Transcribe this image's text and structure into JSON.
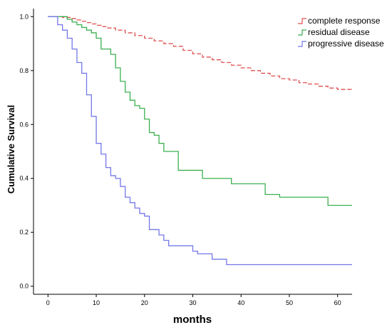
{
  "chart_data": {
    "type": "line",
    "title": "",
    "xlabel": "months",
    "ylabel": "Cumulative Survival",
    "xlim": [
      -3,
      63
    ],
    "ylim": [
      -0.03,
      1.03
    ],
    "x_ticks": [
      0,
      10,
      20,
      30,
      40,
      50,
      60
    ],
    "y_ticks": [
      0.0,
      0.2,
      0.4,
      0.6,
      0.8,
      1.0
    ],
    "x_tick_labels": [
      "0",
      "10",
      "20",
      "30",
      "40",
      "50",
      "60"
    ],
    "y_tick_labels": [
      "0.0",
      "0.2",
      "0.4",
      "0.6",
      "0.8",
      "1.0"
    ],
    "step": true,
    "grid": false,
    "legend_position": "top-right",
    "series": [
      {
        "name": "complete response",
        "color": "#e05050",
        "x": [
          0,
          3,
          5,
          6,
          7,
          8,
          9,
          10,
          11,
          12,
          14,
          16,
          18,
          20,
          22,
          24,
          26,
          28,
          30,
          32,
          34,
          36,
          38,
          40,
          42,
          44,
          46,
          48,
          50,
          52,
          54,
          56,
          58,
          60,
          63
        ],
        "y": [
          1.0,
          0.997,
          0.993,
          0.988,
          0.983,
          0.978,
          0.973,
          0.968,
          0.963,
          0.958,
          0.95,
          0.94,
          0.93,
          0.92,
          0.91,
          0.9,
          0.89,
          0.875,
          0.862,
          0.85,
          0.84,
          0.83,
          0.82,
          0.81,
          0.8,
          0.79,
          0.78,
          0.77,
          0.765,
          0.755,
          0.75,
          0.742,
          0.735,
          0.73,
          0.73
        ]
      },
      {
        "name": "residual disease",
        "color": "#3cb050",
        "x": [
          0,
          4,
          5,
          6,
          7,
          8,
          9,
          10,
          11,
          13,
          14,
          15,
          16,
          17,
          18,
          19,
          20,
          21,
          22,
          23,
          24,
          27,
          32,
          38,
          45,
          48,
          58,
          63
        ],
        "y": [
          1.0,
          0.99,
          0.98,
          0.97,
          0.96,
          0.95,
          0.94,
          0.92,
          0.88,
          0.86,
          0.81,
          0.76,
          0.72,
          0.69,
          0.67,
          0.66,
          0.62,
          0.57,
          0.56,
          0.53,
          0.5,
          0.43,
          0.4,
          0.38,
          0.34,
          0.33,
          0.3,
          0.3
        ]
      },
      {
        "name": "progressive disease",
        "color": "#7478e8",
        "x": [
          0,
          2,
          3,
          4,
          5,
          6,
          7,
          8,
          9,
          10,
          11,
          12,
          13,
          14,
          15,
          16,
          17,
          18,
          19,
          20,
          21,
          23,
          24,
          25,
          30,
          31,
          34,
          37,
          63
        ],
        "y": [
          1.0,
          0.97,
          0.95,
          0.92,
          0.88,
          0.83,
          0.79,
          0.71,
          0.63,
          0.53,
          0.49,
          0.44,
          0.41,
          0.4,
          0.37,
          0.33,
          0.31,
          0.29,
          0.27,
          0.26,
          0.21,
          0.19,
          0.17,
          0.15,
          0.13,
          0.12,
          0.1,
          0.08,
          0.08
        ]
      }
    ]
  }
}
